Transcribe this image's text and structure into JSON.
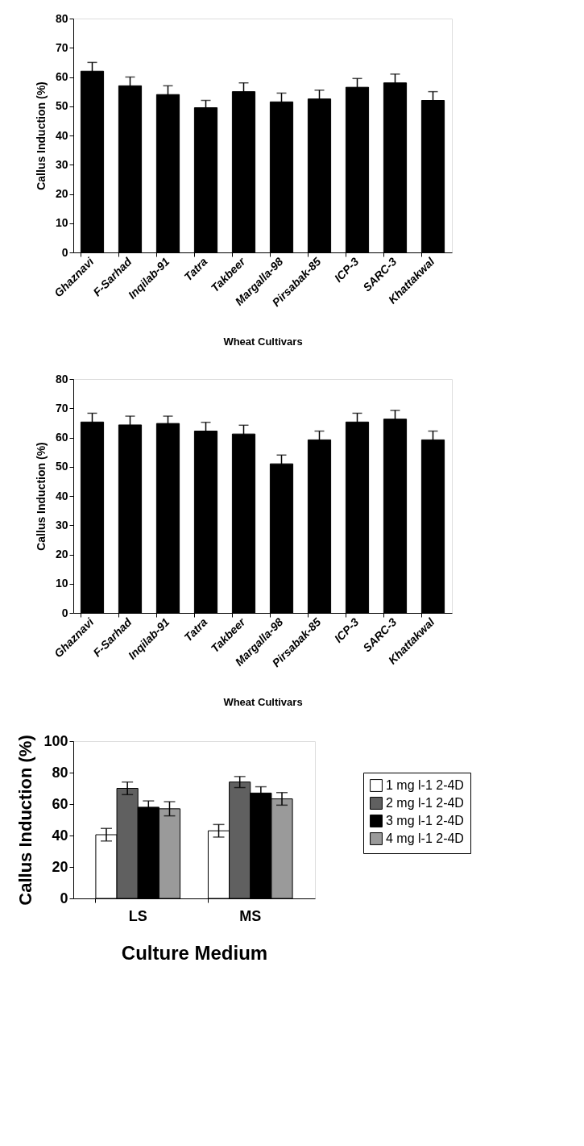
{
  "chart_data": [
    {
      "type": "bar",
      "xlabel": "Wheat Cultivars",
      "ylabel": "Callus Induction (%)",
      "categories": [
        "Ghaznavi",
        "F-Sarhad",
        "Inqilab-91",
        "Tatra",
        "Takbeer",
        "Margalla-98",
        "Pirsabak-85",
        "ICP-3",
        "SARC-3",
        "Khattakwal"
      ],
      "values": [
        62,
        57,
        54,
        49.5,
        55,
        51.5,
        52.5,
        56.5,
        58,
        52
      ],
      "errors": [
        3,
        3,
        3,
        2.5,
        3,
        3,
        3,
        3,
        3,
        3
      ],
      "color": "#000000",
      "ylim": [
        0,
        80
      ],
      "yticks": [
        0,
        10,
        20,
        30,
        40,
        50,
        60,
        70,
        80
      ],
      "grid": false,
      "legend": false
    },
    {
      "type": "bar",
      "xlabel": "Wheat Cultivars",
      "ylabel": "Callus Induction (%)",
      "categories": [
        "Ghaznavi",
        "F-Sarhad",
        "Inqilab-91",
        "Tatra",
        "Takbeer",
        "Margalla-98",
        "Pirsabak-85",
        "ICP-3",
        "SARC-3",
        "Khattakwal"
      ],
      "values": [
        65.3,
        64.3,
        64.8,
        62.2,
        61.2,
        51,
        59.2,
        65.3,
        66.3,
        59.2
      ],
      "errors": [
        3,
        3,
        2.5,
        3,
        3,
        3,
        3,
        3,
        3,
        3
      ],
      "color": "#000000",
      "ylim": [
        0,
        80
      ],
      "yticks": [
        0,
        10,
        20,
        30,
        40,
        50,
        60,
        70,
        80
      ],
      "grid": false,
      "legend": false
    },
    {
      "type": "bar",
      "xlabel": "Culture Medium",
      "ylabel": "Callus Induction (%)",
      "categories": [
        "LS",
        "MS"
      ],
      "series": [
        {
          "name": "1 mg l-1 2-4D",
          "color": "#ffffff",
          "values": [
            40.5,
            43
          ],
          "errors": [
            4,
            4
          ]
        },
        {
          "name": "2 mg l-1 2-4D",
          "color": "#606060",
          "values": [
            70,
            74
          ],
          "errors": [
            4,
            3.5
          ]
        },
        {
          "name": "3 mg l-1 2-4D",
          "color": "#000000",
          "values": [
            58,
            67
          ],
          "errors": [
            4,
            4
          ]
        },
        {
          "name": "4 mg l-1 2-4D",
          "color": "#9a9a9a",
          "values": [
            57,
            63.3
          ],
          "errors": [
            4.5,
            4
          ]
        }
      ],
      "ylim": [
        0,
        100
      ],
      "yticks": [
        0,
        20,
        40,
        60,
        80,
        100
      ],
      "grid": false,
      "legend": "right"
    }
  ]
}
